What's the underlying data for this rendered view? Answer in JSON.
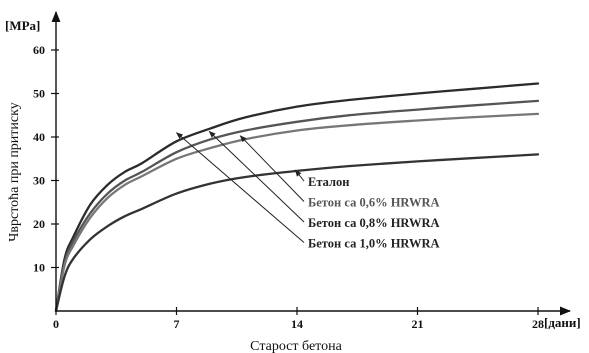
{
  "chart_data": {
    "type": "line",
    "y_unit": "[MPa]",
    "x_unit": "[дани]",
    "xlabel": "Старост бетона",
    "ylabel": "Чврстоћа при притиску",
    "xlim": [
      0,
      28
    ],
    "ylim": [
      0,
      60
    ],
    "x_ticks": [
      0,
      7,
      14,
      21,
      28
    ],
    "y_ticks": [
      10,
      20,
      30,
      40,
      50,
      60
    ],
    "grid": false,
    "legend_placement": "annotations with arrows, center-right",
    "series": [
      {
        "name": "Еталон",
        "color": "#2b2b2b",
        "x": [
          0,
          0.5,
          1,
          2,
          3,
          4,
          5,
          7,
          9,
          11,
          14,
          17,
          21,
          24,
          28
        ],
        "y": [
          0,
          12,
          17,
          24.5,
          29,
          32,
          34,
          39,
          42,
          44.5,
          47,
          48.5,
          50,
          51,
          52.3
        ]
      },
      {
        "name": "Бетон са 0,6% HRWRA",
        "color": "#555555",
        "x": [
          0,
          0.5,
          1,
          2,
          3,
          4,
          5,
          7,
          9,
          11,
          14,
          17,
          21,
          24,
          28
        ],
        "y": [
          0,
          11,
          16,
          22.5,
          27,
          30,
          32,
          36.5,
          39.5,
          41.5,
          43.5,
          45,
          46.3,
          47.2,
          48.3
        ]
      },
      {
        "name": "Бетон са 0,8% HRWRA",
        "color": "#777777",
        "x": [
          0,
          0.5,
          1,
          2,
          3,
          4,
          5,
          7,
          9,
          11,
          14,
          17,
          21,
          24,
          28
        ],
        "y": [
          0,
          10.5,
          15,
          21.5,
          26,
          29,
          31,
          35,
          37.5,
          39.5,
          41.5,
          42.7,
          43.8,
          44.5,
          45.3
        ]
      },
      {
        "name": "Бетон са 1,0% HRWRA",
        "color": "#333333",
        "x": [
          0,
          0.5,
          1,
          2,
          3,
          4,
          5,
          7,
          9,
          11,
          14,
          17,
          21,
          24,
          28
        ],
        "y": [
          0,
          8,
          12,
          16.5,
          19.5,
          21.8,
          23.5,
          27,
          29.3,
          30.8,
          32.2,
          33.3,
          34.4,
          35.1,
          36
        ]
      }
    ],
    "annotations": [
      {
        "text": "Еталон",
        "color": "#222222",
        "arrow_to_x": 13.9,
        "arrow_to_y": 32.4
      },
      {
        "text": "Бетон са 0,6% HRWRA",
        "color": "#555555",
        "arrow_to_x": 10.7,
        "arrow_to_y": 40.3
      },
      {
        "text": "Бетон са 0,8% HRWRA",
        "color": "#222222",
        "arrow_to_x": 8.9,
        "arrow_to_y": 41.3
      },
      {
        "text": "Бетон са 1,0% HRWRA",
        "color": "#222222",
        "arrow_to_x": 7.0,
        "arrow_to_y": 41.0
      }
    ]
  }
}
